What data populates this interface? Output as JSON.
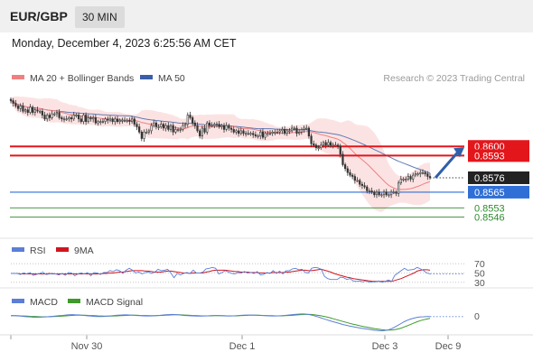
{
  "header": {
    "symbol": "EUR/GBP",
    "timeframe": "30 MIN"
  },
  "datetime": "Monday, December 4, 2023 6:25:56 AM CET",
  "colors": {
    "ma20": "#f08080",
    "ma50": "#3a5fa8",
    "bollinger_fill": "#fbd9d9",
    "up_candle": "#ffffff",
    "down_candle": "#333333",
    "resistance": "#e3161b",
    "pivot": "#2f6fd6",
    "support": "#2e8b2e",
    "last": "#222222",
    "arrow": "#2f5fa8",
    "rsi": "#5b7fd6",
    "rsi_ma": "#d0151f",
    "macd": "#5b7fd6",
    "macd_signal": "#3d9b2a"
  },
  "chart_data": [
    {
      "type": "candlestick",
      "legend": [
        {
          "label": "MA 20 + Bollinger Bands",
          "color": "#f08080"
        },
        {
          "label": "MA 50",
          "color": "#3a5fa8"
        }
      ],
      "watermark": "Research © 2023 Trading Central",
      "ylim": [
        0.8538,
        0.8643
      ],
      "levels": [
        {
          "value": 0.86,
          "label": "0.8600",
          "kind": "resistance"
        },
        {
          "value": 0.8593,
          "label": "0.8593",
          "kind": "resistance"
        },
        {
          "value": 0.8576,
          "label": "0.8576",
          "kind": "last"
        },
        {
          "value": 0.8565,
          "label": "0.8565",
          "kind": "pivot"
        },
        {
          "value": 0.8553,
          "label": "0.8553",
          "kind": "support"
        },
        {
          "value": 0.8546,
          "label": "0.8546",
          "kind": "support"
        }
      ],
      "close": [
        0.8635,
        0.8633,
        0.8631,
        0.8629,
        0.8631,
        0.8627,
        0.8628,
        0.8626,
        0.863,
        0.8626,
        0.8628,
        0.8627,
        0.8627,
        0.8624,
        0.8621,
        0.8624,
        0.8622,
        0.8625,
        0.8625,
        0.8626,
        0.8622,
        0.8621,
        0.8621,
        0.8621,
        0.8622,
        0.8621,
        0.8624,
        0.8624,
        0.8621,
        0.8619,
        0.8624,
        0.8619,
        0.8622,
        0.8621,
        0.8622,
        0.8618,
        0.8619,
        0.8619,
        0.8619,
        0.8621,
        0.862,
        0.8621,
        0.8619,
        0.8621,
        0.8619,
        0.862,
        0.862,
        0.862,
        0.862,
        0.8619,
        0.8621,
        0.8617,
        0.8615,
        0.8611,
        0.8606,
        0.8611,
        0.8611,
        0.8612,
        0.8616,
        0.8618,
        0.8615,
        0.8615,
        0.8617,
        0.8614,
        0.8616,
        0.8613,
        0.8616,
        0.8611,
        0.8613,
        0.8613,
        0.8613,
        0.8616,
        0.8617,
        0.8624,
        0.8622,
        0.8618,
        0.8616,
        0.8612,
        0.8608,
        0.8614,
        0.8611,
        0.8618,
        0.8616,
        0.8616,
        0.8617,
        0.8617,
        0.8615,
        0.8616,
        0.8613,
        0.8616,
        0.8614,
        0.8613,
        0.8611,
        0.8612,
        0.861,
        0.8612,
        0.861,
        0.861,
        0.861,
        0.861,
        0.8609,
        0.8608,
        0.8608,
        0.8611,
        0.8607,
        0.861,
        0.861,
        0.861,
        0.8611,
        0.8611,
        0.8611,
        0.8612,
        0.8613,
        0.861,
        0.8612,
        0.8612,
        0.8614,
        0.8614,
        0.861,
        0.8611,
        0.8613,
        0.8614,
        0.8614,
        0.8608,
        0.8602,
        0.8601,
        0.8599,
        0.8599,
        0.8601,
        0.8603,
        0.8601,
        0.8603,
        0.8601,
        0.8601,
        0.8601,
        0.86,
        0.8594,
        0.8586,
        0.8583,
        0.858,
        0.8578,
        0.8577,
        0.8574,
        0.8574,
        0.8571,
        0.857,
        0.8569,
        0.8566,
        0.8566,
        0.8565,
        0.8563,
        0.8565,
        0.8563,
        0.8563,
        0.8565,
        0.8563,
        0.8563,
        0.8565,
        0.8565,
        0.8564,
        0.8572,
        0.8575,
        0.8575,
        0.8575,
        0.8577,
        0.8575,
        0.8578,
        0.8579,
        0.8579,
        0.858,
        0.858,
        0.8579,
        0.8577,
        0.8576
      ]
    },
    {
      "type": "line",
      "legend": [
        {
          "label": "RSI",
          "color": "#5b7fd6"
        },
        {
          "label": "9MA",
          "color": "#d0151f"
        }
      ],
      "yticks": [
        30,
        50,
        70
      ],
      "ylim": [
        20,
        80
      ],
      "series": [
        {
          "name": "RSI",
          "values": [
            49,
            49,
            49,
            47,
            50,
            48,
            51,
            45,
            47,
            49,
            52,
            47,
            48,
            49,
            48,
            46,
            49,
            45,
            51,
            50,
            44,
            48,
            50,
            48,
            51,
            44,
            51,
            50,
            47,
            51,
            51,
            55,
            53,
            57,
            55,
            49,
            56,
            60,
            56,
            50,
            52,
            48,
            51,
            52,
            49,
            52,
            58,
            55,
            56,
            58,
            50,
            40,
            49,
            46,
            49,
            51,
            49,
            56,
            50,
            50,
            52,
            59,
            60,
            62,
            60,
            48,
            51,
            55,
            52,
            49,
            48,
            51,
            50,
            53,
            50,
            51,
            49,
            53,
            46,
            47,
            51,
            49,
            55,
            49,
            54,
            48,
            55,
            55,
            59,
            60,
            57,
            58,
            51,
            50,
            60,
            62,
            61,
            58,
            43,
            38,
            36,
            36,
            36,
            41,
            40,
            36,
            38,
            33,
            32,
            33,
            31,
            33,
            30,
            31,
            31,
            33,
            30,
            32,
            35,
            32,
            45,
            50,
            55,
            60,
            56,
            57,
            58,
            62,
            59,
            55,
            50,
            48
          ]
        },
        {
          "name": "9MA",
          "values": [
            49,
            49,
            49,
            48,
            48,
            48,
            48,
            48,
            48,
            48,
            48,
            48,
            49,
            48,
            48,
            48,
            48,
            48,
            48,
            48,
            48,
            48,
            48,
            48,
            48,
            48,
            48,
            48,
            48,
            49,
            49,
            50,
            50,
            51,
            52,
            52,
            53,
            54,
            55,
            55,
            55,
            55,
            54,
            54,
            53,
            52,
            52,
            52,
            53,
            54,
            54,
            53,
            52,
            51,
            50,
            50,
            49,
            50,
            50,
            50,
            50,
            52,
            53,
            55,
            56,
            56,
            56,
            56,
            55,
            54,
            53,
            53,
            52,
            52,
            52,
            51,
            51,
            51,
            50,
            50,
            50,
            50,
            51,
            51,
            51,
            51,
            52,
            52,
            53,
            54,
            55,
            56,
            56,
            55,
            55,
            56,
            57,
            58,
            56,
            54,
            52,
            49,
            47,
            45,
            43,
            41,
            40,
            38,
            37,
            36,
            35,
            34,
            33,
            32,
            32,
            32,
            32,
            32,
            32,
            32,
            34,
            36,
            38,
            41,
            44,
            47,
            50,
            54,
            56,
            57,
            57,
            56
          ]
        }
      ]
    },
    {
      "type": "line",
      "legend": [
        {
          "label": "MACD",
          "color": "#5b7fd6"
        },
        {
          "label": "MACD Signal",
          "color": "#3d9b2a"
        }
      ],
      "yticks": [
        0
      ],
      "ylim": [
        -0.0012,
        0.0007
      ],
      "series": [
        {
          "name": "MACD",
          "values": [
            0,
            0,
            -1e-05,
            -3e-05,
            -5e-05,
            -7e-05,
            -8e-05,
            -0.0001,
            -0.0001,
            -0.0001,
            -9e-05,
            -8e-05,
            -6e-05,
            -4e-05,
            -2e-05,
            0,
            2e-05,
            4e-05,
            6e-05,
            7e-05,
            6e-05,
            5e-05,
            3e-05,
            1e-05,
            -1e-05,
            -3e-05,
            -5e-05,
            -6e-05,
            -6e-05,
            -5e-05,
            -3e-05,
            -1e-05,
            1e-05,
            3e-05,
            4e-05,
            5e-05,
            5e-05,
            4e-05,
            3e-05,
            1e-05,
            0,
            -1e-05,
            -2e-05,
            -2e-05,
            -1e-05,
            0,
            2e-05,
            4e-05,
            6e-05,
            7e-05,
            8e-05,
            7e-05,
            5e-05,
            3e-05,
            1e-05,
            0,
            -1e-05,
            -2e-05,
            -3e-05,
            -3e-05,
            -2e-05,
            -1e-05,
            0,
            1e-05,
            1e-05,
            0,
            -1e-05,
            -2e-05,
            -2e-05,
            -1e-05,
            0,
            2e-05,
            3e-05,
            4e-05,
            4e-05,
            4e-05,
            3e-05,
            2e-05,
            1e-05,
            0,
            -1e-05,
            -2e-05,
            -2e-05,
            -1e-05,
            0,
            2e-05,
            4e-05,
            6e-05,
            8e-05,
            0.0001,
            0.00011,
            0.00011,
            9e-05,
            5e-05,
            0,
            -6e-05,
            -0.00013,
            -0.0002,
            -0.00027,
            -0.00034,
            -0.0004,
            -0.00046,
            -0.00052,
            -0.00058,
            -0.00063,
            -0.00068,
            -0.00072,
            -0.00076,
            -0.0008,
            -0.00084,
            -0.00087,
            -0.0009,
            -0.00093,
            -0.00096,
            -0.00098,
            -0.00099,
            -0.00098,
            -0.00094,
            -0.00086,
            -0.00076,
            -0.00064,
            -0.00052,
            -0.0004,
            -0.0003,
            -0.00022,
            -0.00016,
            -0.00011,
            -8e-05,
            -7e-05,
            -6e-05,
            -6e-05
          ]
        },
        {
          "name": "MACD Signal",
          "values": [
            0,
            0,
            0,
            -1e-05,
            -2e-05,
            -3e-05,
            -4e-05,
            -5e-05,
            -6e-05,
            -7e-05,
            -7e-05,
            -7e-05,
            -7e-05,
            -6e-05,
            -5e-05,
            -4e-05,
            -3e-05,
            -1e-05,
            0,
            2e-05,
            3e-05,
            3e-05,
            3e-05,
            3e-05,
            2e-05,
            1e-05,
            0,
            -1e-05,
            -2e-05,
            -3e-05,
            -3e-05,
            -3e-05,
            -2e-05,
            -1e-05,
            0,
            1e-05,
            2e-05,
            3e-05,
            3e-05,
            3e-05,
            2e-05,
            1e-05,
            1e-05,
            0,
            0,
            0,
            1e-05,
            2e-05,
            3e-05,
            4e-05,
            5e-05,
            6e-05,
            6e-05,
            5e-05,
            4e-05,
            3e-05,
            2e-05,
            1e-05,
            0,
            -1e-05,
            -1e-05,
            -1e-05,
            -1e-05,
            0,
            0,
            0,
            0,
            -1e-05,
            -1e-05,
            -1e-05,
            -1e-05,
            0,
            1e-05,
            2e-05,
            3e-05,
            3e-05,
            3e-05,
            3e-05,
            2e-05,
            1e-05,
            0,
            0,
            -1e-05,
            -1e-05,
            -1e-05,
            0,
            1e-05,
            2e-05,
            4e-05,
            5e-05,
            7e-05,
            8e-05,
            8e-05,
            8e-05,
            6e-05,
            3e-05,
            0,
            -4e-05,
            -9e-05,
            -0.00014,
            -0.0002,
            -0.00026,
            -0.00032,
            -0.00038,
            -0.00044,
            -0.0005,
            -0.00055,
            -0.0006,
            -0.00065,
            -0.0007,
            -0.00074,
            -0.00078,
            -0.00082,
            -0.00086,
            -0.00089,
            -0.00092,
            -0.00094,
            -0.00095,
            -0.00095,
            -0.00092,
            -0.00088,
            -0.00082,
            -0.00074,
            -0.00066,
            -0.00057,
            -0.00048,
            -0.0004,
            -0.00033,
            -0.00027,
            -0.00022,
            -0.00018
          ]
        }
      ]
    }
  ],
  "xaxis": {
    "labels": [
      "Nov 30",
      "Dec 1",
      "Dec 3",
      "Dec 9"
    ]
  }
}
